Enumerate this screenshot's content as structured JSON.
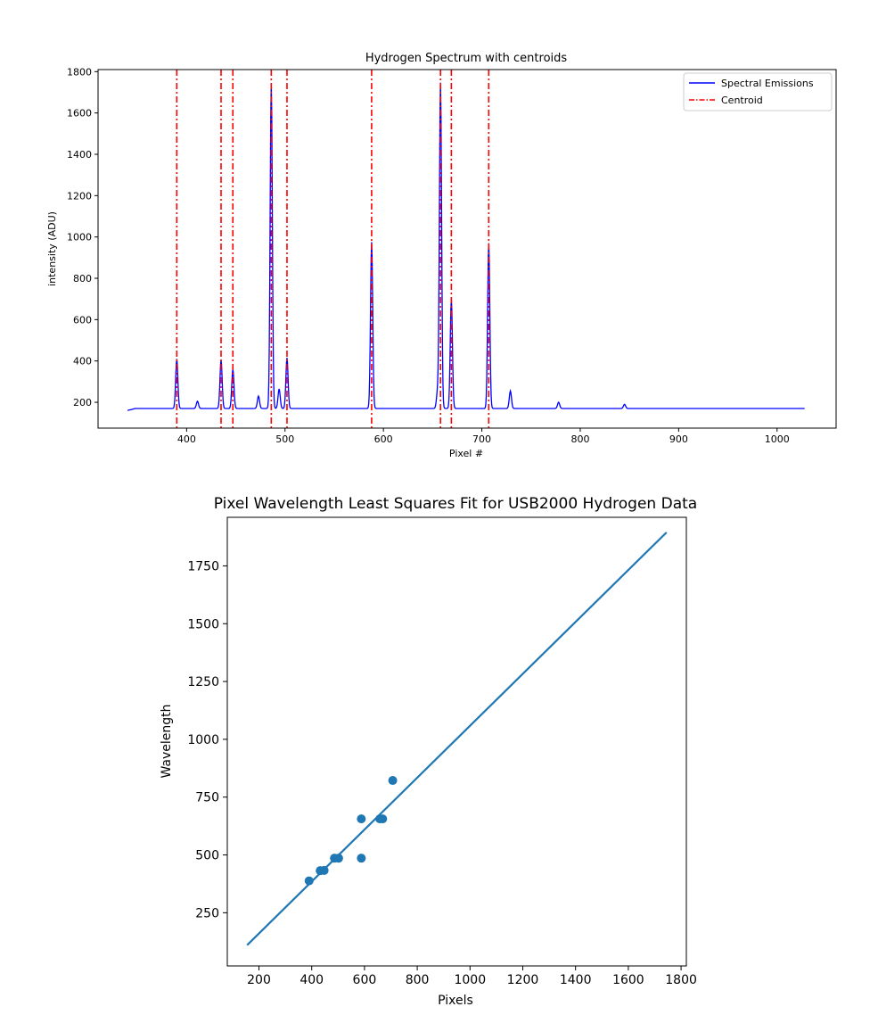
{
  "chart_data": [
    {
      "type": "line",
      "title": "Hydrogen Spectrum with centroids",
      "xlabel": "Pixel #",
      "ylabel": "intensity (ADU)",
      "xlim": [
        310,
        1060
      ],
      "ylim": [
        75,
        1810
      ],
      "xticks": [
        400,
        500,
        600,
        700,
        800,
        900,
        1000
      ],
      "yticks": [
        200,
        400,
        600,
        800,
        1000,
        1200,
        1400,
        1600,
        1800
      ],
      "baseline": 170,
      "x_start": 340,
      "x_end": 1028,
      "series": [
        {
          "name": "Spectral Emissions",
          "color": "#0000ff",
          "style": "solid",
          "peaks": [
            {
              "x": 390,
              "y": 410
            },
            {
              "x": 411,
              "y": 205
            },
            {
              "x": 435,
              "y": 405
            },
            {
              "x": 447,
              "y": 360
            },
            {
              "x": 473,
              "y": 230
            },
            {
              "x": 486,
              "y": 1745
            },
            {
              "x": 494,
              "y": 265
            },
            {
              "x": 502,
              "y": 415
            },
            {
              "x": 588,
              "y": 975
            },
            {
              "x": 655,
              "y": 250
            },
            {
              "x": 658,
              "y": 1745
            },
            {
              "x": 669,
              "y": 700
            },
            {
              "x": 707,
              "y": 970
            },
            {
              "x": 729,
              "y": 255
            },
            {
              "x": 778,
              "y": 200
            },
            {
              "x": 845,
              "y": 190
            }
          ]
        },
        {
          "name": "Centroid",
          "color": "#ff0000",
          "style": "dashdot",
          "x": [
            390,
            435,
            447,
            486,
            502,
            588,
            658,
            669,
            707
          ]
        }
      ],
      "legend": "top-right",
      "grid": false
    },
    {
      "type": "scatter",
      "title": "Pixel Wavelength Least Squares Fit for USB2000 Hydrogen Data",
      "xlabel": "Pixels",
      "ylabel": "Wavelength",
      "xlim": [
        80,
        1820
      ],
      "ylim": [
        20,
        1960
      ],
      "xticks": [
        200,
        400,
        600,
        800,
        1000,
        1200,
        1400,
        1600,
        1800
      ],
      "yticks": [
        250,
        500,
        750,
        1000,
        1250,
        1500,
        1750
      ],
      "color": "#1f77b4",
      "points": [
        {
          "x": 390,
          "y": 388
        },
        {
          "x": 432,
          "y": 432
        },
        {
          "x": 447,
          "y": 433
        },
        {
          "x": 486,
          "y": 486
        },
        {
          "x": 502,
          "y": 486
        },
        {
          "x": 588,
          "y": 486
        },
        {
          "x": 588,
          "y": 656
        },
        {
          "x": 658,
          "y": 656
        },
        {
          "x": 669,
          "y": 656
        },
        {
          "x": 707,
          "y": 822
        }
      ],
      "fit_line": {
        "x": [
          155,
          1745
        ],
        "y": [
          110,
          1895
        ]
      }
    }
  ]
}
